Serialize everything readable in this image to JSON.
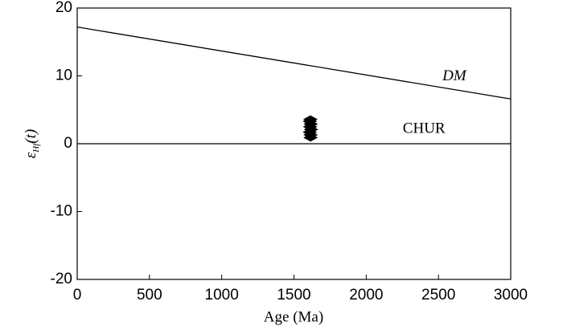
{
  "chart_data": {
    "type": "scatter",
    "xlabel": "Age (Ma)",
    "ylabel": {
      "main": "ε",
      "sub": "Hf",
      "tail": "(t)"
    },
    "xlim": [
      0,
      3000
    ],
    "xticks": [
      0,
      500,
      1000,
      1500,
      2000,
      2500,
      3000
    ],
    "ylim": [
      -20,
      20
    ],
    "yticks": [
      -20,
      -10,
      0,
      10,
      20
    ],
    "lines": [
      {
        "name": "DM",
        "x": [
          0,
          3000
        ],
        "y": [
          17.2,
          6.6
        ],
        "color": "#000000"
      },
      {
        "name": "CHUR",
        "x": [
          0,
          3000
        ],
        "y": [
          0,
          0
        ],
        "color": "#000000"
      }
    ],
    "points": {
      "color": "#000000",
      "x": [
        1615,
        1615,
        1610,
        1618,
        1612,
        1616,
        1610,
        1614
      ],
      "y": [
        0.9,
        1.3,
        1.7,
        2.1,
        2.5,
        2.9,
        3.3,
        3.6
      ]
    }
  }
}
